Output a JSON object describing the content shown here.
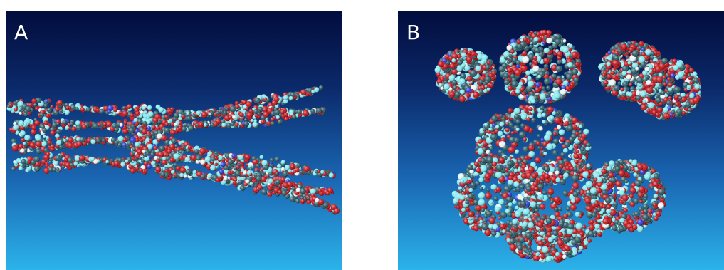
{
  "panels": [
    {
      "label": "A"
    },
    {
      "label": "B"
    }
  ],
  "colors": {
    "background_top": "#020c3c",
    "background_bottom": "#2bb3ea",
    "atom_oxygen": "#c0141c",
    "atom_carbon": "#2a5a66",
    "atom_hydrogen": "#7fe8ee",
    "atom_nitrogen": "#2b3bd6",
    "atom_white": "#e8f4f6"
  }
}
